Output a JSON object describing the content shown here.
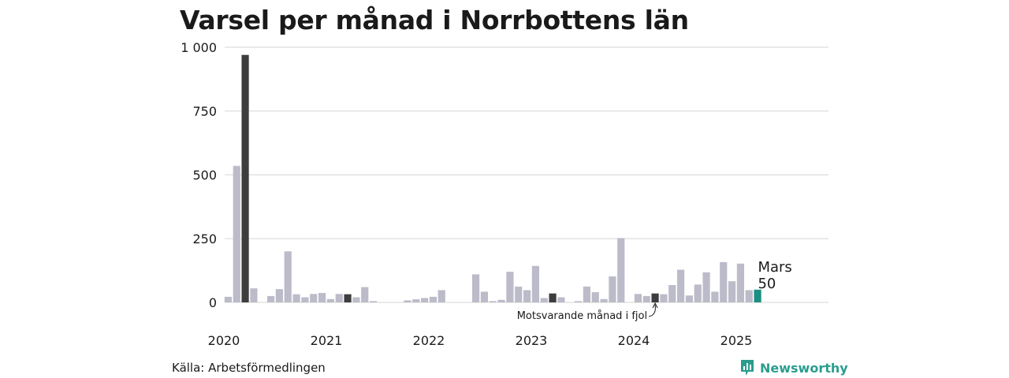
{
  "title": "Varsel per månad i Norrbottens län",
  "source": "Källa: Arbetsförmedlingen",
  "brand": {
    "name": "Newsworthy",
    "icon": "newsworthy-logo-icon",
    "color": "#2a9d8f"
  },
  "colors": {
    "bar": "#bcbbc9",
    "previous_year": "#3d3d3d",
    "current": "#1a9080",
    "grid": "#dedede"
  },
  "chart_data": {
    "type": "bar",
    "title": "Varsel per månad i Norrbottens län",
    "xlabel": "",
    "ylabel": "",
    "ylim": [
      0,
      1000
    ],
    "yticks": [
      0,
      250,
      500,
      750,
      1000
    ],
    "ytick_labels": [
      "0",
      "250",
      "500",
      "750",
      "1 000"
    ],
    "xtick_labels": [
      "2020",
      "2021",
      "2022",
      "2023",
      "2024",
      "2025"
    ],
    "grid": true,
    "start": "2020-01",
    "end": "2025-12",
    "months": [
      "2020-01",
      "2020-02",
      "2020-03",
      "2020-04",
      "2020-05",
      "2020-06",
      "2020-07",
      "2020-08",
      "2020-09",
      "2020-10",
      "2020-11",
      "2020-12",
      "2021-01",
      "2021-02",
      "2021-03",
      "2021-04",
      "2021-05",
      "2021-06",
      "2021-07",
      "2021-08",
      "2021-09",
      "2021-10",
      "2021-11",
      "2021-12",
      "2022-01",
      "2022-02",
      "2022-03",
      "2022-04",
      "2022-05",
      "2022-06",
      "2022-07",
      "2022-08",
      "2022-09",
      "2022-10",
      "2022-11",
      "2022-12",
      "2023-01",
      "2023-02",
      "2023-03",
      "2023-04",
      "2023-05",
      "2023-06",
      "2023-07",
      "2023-08",
      "2023-09",
      "2023-10",
      "2023-11",
      "2023-12",
      "2024-01",
      "2024-02",
      "2024-03",
      "2024-04",
      "2024-05",
      "2024-06",
      "2024-07",
      "2024-08",
      "2024-09",
      "2024-10",
      "2024-11",
      "2024-12",
      "2025-01",
      "2025-02",
      "2025-03"
    ],
    "values": [
      22,
      535,
      970,
      55,
      0,
      25,
      52,
      200,
      32,
      20,
      33,
      37,
      13,
      33,
      32,
      20,
      60,
      5,
      0,
      0,
      0,
      8,
      12,
      17,
      22,
      48,
      0,
      0,
      0,
      110,
      42,
      5,
      10,
      120,
      62,
      48,
      143,
      17,
      35,
      20,
      0,
      5,
      62,
      40,
      13,
      102,
      252,
      0,
      33,
      25,
      35,
      32,
      68,
      128,
      27,
      70,
      118,
      42,
      158,
      83,
      152,
      48,
      50
    ],
    "previous_year_highlights": [
      "2020-03",
      "2021-03",
      "2023-03",
      "2024-03"
    ],
    "current": {
      "month": "2025-03",
      "label": "Mars",
      "value_label": "50"
    },
    "annotation": "Motsvarande månad i fjol"
  }
}
